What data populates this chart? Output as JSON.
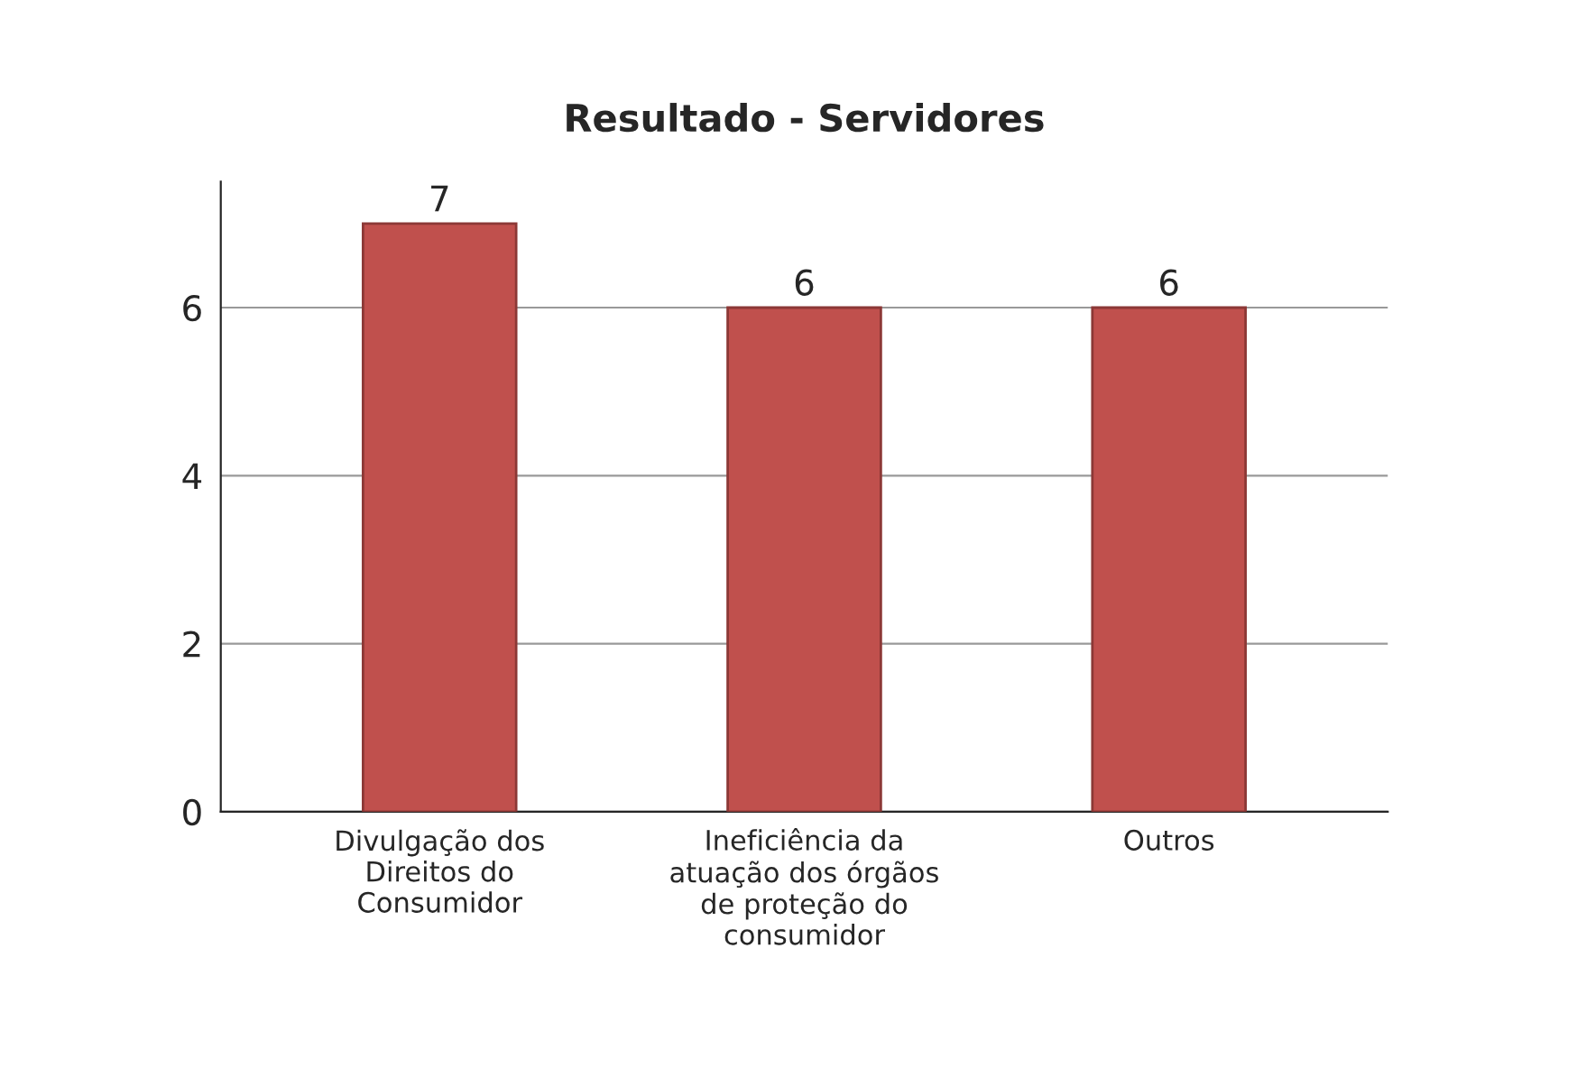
{
  "chart_data": {
    "type": "bar",
    "title": "Resultado - Servidores",
    "categories": [
      "Divulgação dos\nDireitos do\nConsumidor",
      "Ineficiência da\natuação dos órgãos\nde proteção do\nconsumidor",
      "Outros"
    ],
    "values": [
      7,
      6,
      6
    ],
    "color": "#c0504d",
    "ylim": [
      0,
      7.5
    ],
    "yticks": [
      0,
      2,
      4,
      6
    ],
    "grid": "y",
    "data_labels": true
  }
}
